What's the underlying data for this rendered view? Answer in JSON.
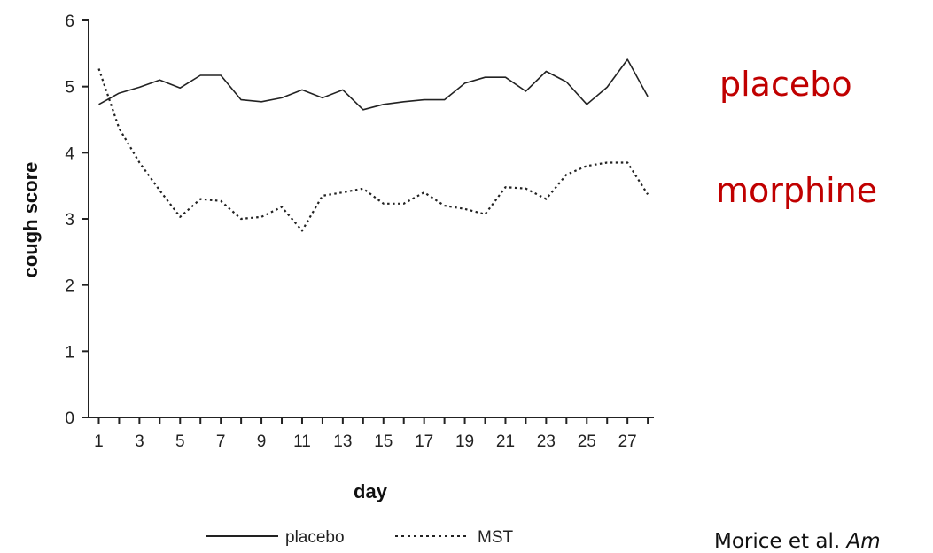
{
  "chart_data": {
    "type": "line",
    "xlabel": "day",
    "ylabel": "cough score",
    "xlim": [
      0.5,
      28.3
    ],
    "ylim": [
      0,
      6
    ],
    "y_ticks": [
      0,
      1,
      2,
      3,
      4,
      5,
      6
    ],
    "x_tick_labels": [
      1,
      3,
      5,
      7,
      9,
      11,
      13,
      15,
      17,
      19,
      21,
      23,
      25,
      27
    ],
    "grid": false,
    "legend_position": "bottom",
    "x": [
      1,
      2,
      3,
      4,
      5,
      6,
      7,
      8,
      9,
      10,
      11,
      12,
      13,
      14,
      15,
      16,
      17,
      18,
      19,
      20,
      21,
      22,
      23,
      24,
      25,
      26,
      27,
      28
    ],
    "series": [
      {
        "name": "placebo",
        "style": "solid",
        "values": [
          4.73,
          4.9,
          4.99,
          5.1,
          4.98,
          5.17,
          5.17,
          4.8,
          4.77,
          4.83,
          4.95,
          4.83,
          4.95,
          4.65,
          4.73,
          4.77,
          4.8,
          4.8,
          5.05,
          5.14,
          5.14,
          4.93,
          5.23,
          5.07,
          4.73,
          4.99,
          5.41,
          4.85
        ]
      },
      {
        "name": "MST",
        "style": "dotted",
        "values": [
          5.27,
          4.37,
          3.85,
          3.43,
          3.03,
          3.3,
          3.27,
          3.0,
          3.03,
          3.18,
          2.82,
          3.35,
          3.4,
          3.46,
          3.23,
          3.23,
          3.4,
          3.2,
          3.15,
          3.07,
          3.48,
          3.46,
          3.3,
          3.67,
          3.8,
          3.85,
          3.85,
          3.37
        ]
      }
    ]
  },
  "annotations": {
    "placebo": "placebo",
    "morphine": "morphine"
  },
  "citation": {
    "text": "Morice et al. ",
    "italic": "Am"
  },
  "colors": {
    "annotation": "#c00000",
    "line": "#222222"
  }
}
